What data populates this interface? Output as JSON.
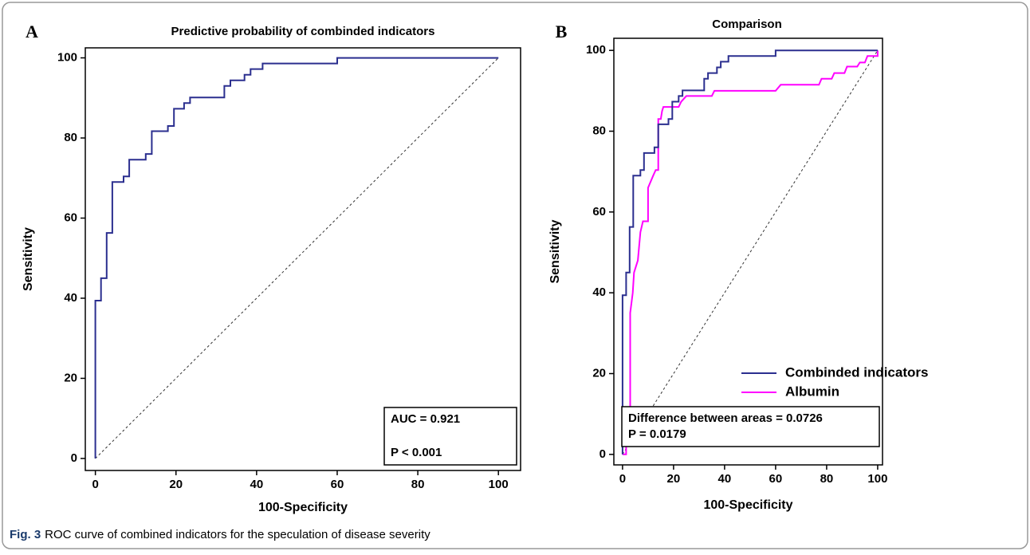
{
  "chart_data": [
    {
      "type": "line",
      "panel_label": "A",
      "title": "Predictive probability of combinded indicators",
      "x_label": "100-Specificity",
      "y_label": "Sensitivity",
      "xlim": [
        -2.5,
        105.5
      ],
      "ylim": [
        -3,
        102.5
      ],
      "xticks": [
        0,
        20,
        40,
        60,
        80,
        100
      ],
      "yticks": [
        0,
        20,
        40,
        60,
        80,
        100
      ],
      "series": [
        {
          "color": "#2b2f8f",
          "x": [
            0,
            0,
            1.4,
            1.4,
            2.8,
            2.8,
            4.2,
            4.2,
            7,
            7,
            8.4,
            8.4,
            12.5,
            12.5,
            14,
            14,
            18,
            18,
            19.5,
            19.5,
            22,
            22,
            23.5,
            23.5,
            32,
            32,
            33.5,
            33.5,
            37,
            37,
            38.5,
            38.5,
            41.5,
            41.5,
            60,
            60,
            100
          ],
          "values": [
            0,
            39.4,
            39.4,
            45,
            45,
            56.3,
            56.3,
            69,
            69,
            70.4,
            70.4,
            74.6,
            74.6,
            76,
            76,
            81.7,
            81.7,
            83,
            83,
            87.3,
            87.3,
            88.7,
            88.7,
            90.1,
            90.1,
            93,
            93,
            94.4,
            94.4,
            95.8,
            95.8,
            97.2,
            97.2,
            98.6,
            98.6,
            100,
            100
          ]
        }
      ],
      "annotations": [
        "AUC = 0.921",
        "P < 0.001"
      ]
    },
    {
      "type": "line",
      "panel_label": "B",
      "title": "Comparison",
      "x_label": "100-Specificity",
      "y_label": "Sensitivity",
      "xlim": [
        -3.4,
        101.9
      ],
      "ylim": [
        -2.6,
        103
      ],
      "xticks": [
        0,
        20,
        40,
        60,
        80,
        100
      ],
      "yticks": [
        0,
        20,
        40,
        60,
        80,
        100
      ],
      "series": [
        {
          "name": "Combinded indicators",
          "color": "#2b2f8f",
          "x": [
            0,
            0,
            1.4,
            1.4,
            2.8,
            2.8,
            4.2,
            4.2,
            7,
            7,
            8.4,
            8.4,
            12.5,
            12.5,
            14,
            14,
            18,
            18,
            19.5,
            19.5,
            22,
            22,
            23.5,
            23.5,
            32,
            32,
            33.5,
            33.5,
            37,
            37,
            38.5,
            38.5,
            41.5,
            41.5,
            60,
            60,
            100
          ],
          "values": [
            0,
            39.4,
            39.4,
            45,
            45,
            56.3,
            56.3,
            69,
            69,
            70.4,
            70.4,
            74.6,
            74.6,
            76,
            76,
            81.7,
            81.7,
            83,
            83,
            87.3,
            87.3,
            88.7,
            88.7,
            90.1,
            90.1,
            93,
            93,
            94.4,
            94.4,
            95.8,
            95.8,
            97.2,
            97.2,
            98.6,
            98.6,
            100,
            100
          ]
        },
        {
          "name": "Albumin",
          "color": "#ff00ff",
          "x": [
            0,
            1.4,
            1.4,
            3,
            3,
            4,
            4.5,
            6,
            7,
            8,
            10,
            10,
            12,
            13,
            14,
            14,
            15,
            15.5,
            16,
            22,
            23,
            25,
            35,
            36,
            60,
            62,
            77,
            78,
            82,
            83,
            87,
            88,
            92,
            93,
            95,
            96,
            100,
            100
          ],
          "values": [
            0,
            0,
            7,
            7,
            35,
            40,
            45,
            48,
            55,
            57.7,
            57.7,
            66,
            69,
            70.4,
            70.4,
            83,
            83,
            85,
            86,
            86,
            87.3,
            88.7,
            88.7,
            90,
            90,
            91.5,
            91.5,
            93,
            93,
            94.4,
            94.4,
            96,
            96,
            97,
            97,
            98.6,
            98.6,
            100
          ]
        }
      ],
      "annotations": [
        "Difference between areas = 0.0726",
        "P = 0.0179"
      ]
    }
  ],
  "caption": {
    "label": "Fig. 3",
    "text": "ROC curve of combined indicators for the speculation of disease severity"
  }
}
